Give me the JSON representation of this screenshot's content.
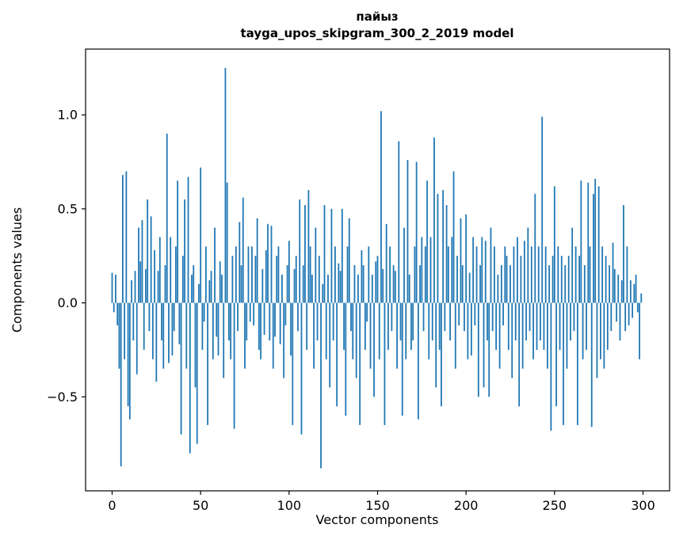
{
  "title_line1": "пайыз",
  "title_line2": "tayga_upos_skipgram_300_2_2019 model",
  "chart_data": {
    "type": "bar",
    "title": "пайыз\ntayga_upos_skipgram_300_2_2019 model",
    "xlabel": "Vector components",
    "ylabel": "Components values",
    "xlim": [
      -15,
      315
    ],
    "ylim": [
      -1.0,
      1.35
    ],
    "xticks": [
      0,
      50,
      100,
      150,
      200,
      250,
      300
    ],
    "yticks": [
      -0.5,
      0.0,
      0.5,
      1.0
    ],
    "bar_color": "#1f77b4",
    "bar_width": 0.8,
    "x_start": 0,
    "grid": false,
    "legend": false,
    "values": [
      0.16,
      -0.05,
      0.15,
      -0.12,
      -0.35,
      -0.87,
      0.68,
      -0.3,
      0.7,
      -0.55,
      -0.62,
      0.12,
      -0.2,
      0.17,
      -0.38,
      0.4,
      0.22,
      0.44,
      -0.25,
      0.18,
      0.55,
      -0.15,
      0.46,
      -0.3,
      0.28,
      -0.42,
      0.17,
      0.35,
      -0.2,
      -0.35,
      0.2,
      0.9,
      -0.32,
      0.35,
      -0.28,
      -0.15,
      0.3,
      0.65,
      -0.22,
      -0.7,
      0.25,
      0.55,
      -0.35,
      0.67,
      -0.8,
      0.15,
      0.2,
      -0.45,
      -0.75,
      0.1,
      0.72,
      -0.25,
      -0.1,
      0.3,
      -0.65,
      0.12,
      0.17,
      -0.3,
      0.4,
      -0.18,
      -0.28,
      0.22,
      0.15,
      -0.4,
      1.25,
      0.64,
      -0.2,
      -0.3,
      0.25,
      -0.67,
      0.3,
      -0.15,
      0.43,
      0.2,
      0.56,
      -0.35,
      -0.2,
      0.3,
      -0.1,
      0.3,
      -0.12,
      0.25,
      0.45,
      -0.25,
      -0.3,
      0.18,
      -0.17,
      0.28,
      0.42,
      -0.2,
      0.41,
      -0.35,
      -0.18,
      0.25,
      0.3,
      -0.22,
      0.15,
      -0.4,
      -0.12,
      0.2,
      0.33,
      -0.28,
      -0.65,
      0.18,
      0.25,
      -0.15,
      0.55,
      -0.7,
      0.2,
      0.52,
      -0.25,
      0.6,
      0.3,
      0.15,
      -0.35,
      0.4,
      -0.2,
      0.25,
      -0.88,
      0.1,
      0.52,
      -0.3,
      0.15,
      -0.45,
      0.5,
      -0.2,
      0.3,
      -0.55,
      0.21,
      0.17,
      0.5,
      -0.25,
      -0.6,
      0.3,
      0.45,
      -0.15,
      -0.3,
      0.2,
      -0.4,
      0.15,
      -0.65,
      0.28,
      0.2,
      -0.25,
      -0.1,
      0.3,
      -0.35,
      0.15,
      -0.5,
      0.22,
      0.25,
      -0.3,
      1.02,
      0.18,
      -0.65,
      0.42,
      -0.25,
      0.3,
      -0.15,
      0.2,
      0.17,
      -0.35,
      0.86,
      -0.2,
      -0.6,
      0.4,
      -0.3,
      0.76,
      0.15,
      -0.25,
      -0.2,
      0.3,
      0.75,
      -0.62,
      0.2,
      0.35,
      -0.15,
      0.3,
      0.65,
      -0.3,
      0.35,
      -0.2,
      0.88,
      -0.45,
      0.58,
      -0.25,
      -0.55,
      0.6,
      -0.15,
      0.52,
      0.3,
      -0.2,
      0.35,
      0.7,
      -0.35,
      0.25,
      -0.12,
      0.45,
      0.2,
      -0.15,
      0.47,
      -0.3,
      0.16,
      -0.28,
      0.35,
      -0.12,
      0.3,
      -0.5,
      0.2,
      0.35,
      -0.45,
      0.33,
      -0.2,
      -0.5,
      0.4,
      -0.15,
      0.3,
      -0.25,
      0.15,
      -0.35,
      0.2,
      -0.12,
      0.3,
      0.25,
      -0.25,
      0.2,
      -0.4,
      0.3,
      -0.2,
      0.35,
      -0.55,
      0.25,
      -0.35,
      0.33,
      -0.2,
      0.4,
      -0.15,
      0.3,
      -0.3,
      0.58,
      -0.25,
      0.3,
      -0.2,
      0.99,
      -0.25,
      0.3,
      -0.35,
      0.2,
      -0.68,
      0.25,
      0.62,
      -0.55,
      0.3,
      -0.25,
      0.25,
      -0.65,
      0.2,
      -0.35,
      0.25,
      -0.2,
      0.4,
      -0.15,
      0.3,
      -0.65,
      0.25,
      0.65,
      -0.3,
      0.2,
      -0.25,
      0.64,
      0.3,
      -0.66,
      0.58,
      0.66,
      -0.4,
      0.62,
      -0.3,
      0.3,
      -0.35,
      0.25,
      -0.25,
      0.2,
      -0.15,
      0.32,
      0.18,
      -0.1,
      0.15,
      -0.2,
      0.12,
      0.52,
      -0.15,
      0.3,
      -0.12,
      0.12,
      -0.08,
      0.1,
      0.15,
      -0.05,
      -0.3,
      0.05
    ]
  }
}
